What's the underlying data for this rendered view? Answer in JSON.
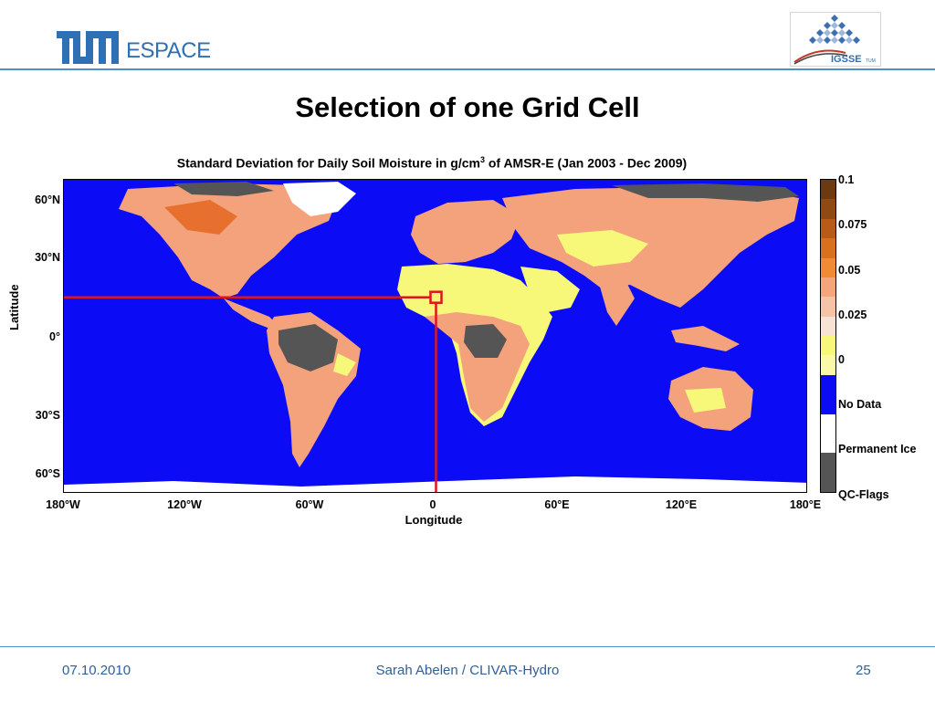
{
  "header": {
    "logo_text": "ESPACE",
    "partner_logo_text": "IGSSE",
    "partner_logo_sub": "TUM"
  },
  "slide_title": "Selection of one Grid Cell",
  "map": {
    "title_prefix": "Standard Deviation for Daily Soil Moisture in g/cm",
    "title_sup": "3",
    "title_suffix": " of AMSR-E (Jan 2003 - Dec 2009)",
    "ylabel": "Latitude",
    "xlabel": "Longitude",
    "lat_ticks": [
      "60°N",
      "30°N",
      "0°",
      "30°S",
      "60°S"
    ],
    "lon_ticks": [
      "180°W",
      "120°W",
      "60°W",
      "0",
      "60°E",
      "120°E",
      "180°E"
    ],
    "colors": {
      "ocean": "#0b0bf5",
      "low": "#f7f77a",
      "mid": "#f3a27c",
      "high": "#e8702e",
      "qc": "#555555",
      "ice": "#ffffff",
      "marker": "#e0141e"
    },
    "selected_cell": {
      "lon": 0,
      "lat": 8
    }
  },
  "colorbar": {
    "labels": [
      "0.1",
      "0.075",
      "0.05",
      "0.025",
      "0",
      "No Data",
      "Permanent Ice",
      "QC-Flags"
    ],
    "segments": [
      "#6b3a10",
      "#8e4a12",
      "#b85a18",
      "#d8701e",
      "#f08a35",
      "#f5a57a",
      "#f6c3a6",
      "#f8e2d4",
      "#f7f77a",
      "#f9f9a8",
      "#0b0bf5",
      "#0b0bf5",
      "#ffffff",
      "#ffffff",
      "#555555",
      "#555555"
    ]
  },
  "footer": {
    "date": "07.10.2010",
    "author": "Sarah Abelen / CLIVAR-Hydro",
    "page": "25"
  }
}
